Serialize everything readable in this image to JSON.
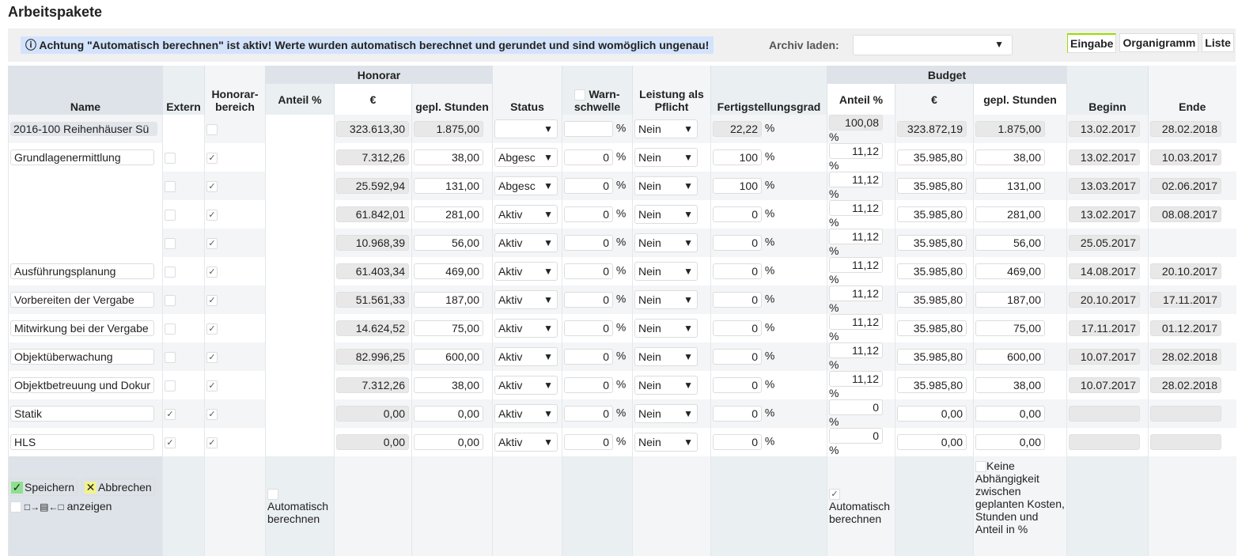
{
  "title": "Arbeitspakete",
  "alert": "ⓘ  Achtung \"Automatisch berechnen\" ist aktiv! Werte wurden automatisch berechnet und gerundet und sind womöglich ungenau!",
  "archive_label": "Archiv laden:",
  "archive_value": "",
  "tabs": [
    "Eingabe",
    "Organigramm",
    "Liste"
  ],
  "headers": {
    "name": "Name",
    "extern": "Extern",
    "honorarbereich": "Honorar-bereich",
    "honorar": "Honorar",
    "anteil": "Anteil %",
    "eur": "€",
    "stunden": "gepl. Stunden",
    "status": "Status",
    "warn": "Warn-schwelle",
    "leistung": "Leistung als Pflicht",
    "fertig": "Fertigstellungsgrad",
    "budget": "Budget",
    "b_anteil": "Anteil %",
    "b_eur": "€",
    "b_stunden": "gepl. Stunden",
    "beginn": "Beginn",
    "ende": "Ende"
  },
  "rows": [
    {
      "name": "2016-100 Reihenhäuser Sü",
      "summary": true,
      "extern": null,
      "honorar": false,
      "h_eur": "323.613,30",
      "h_std": "1.875,00",
      "status": "",
      "warn": "",
      "leistung": "Nein",
      "fertig": "22,22",
      "anteil": "100,08",
      "b_eur": "323.872,19",
      "b_std": "1.875,00",
      "beginn": "13.02.2017",
      "ende": "28.02.2018"
    },
    {
      "name": "Grundlagenermittlung",
      "extern": false,
      "honorar": true,
      "h_eur": "7.312,26",
      "h_std": "38,00",
      "status": "Abgesc",
      "warn": "0",
      "leistung": "Nein",
      "fertig": "100",
      "anteil": "11,12",
      "b_eur": "35.985,80",
      "b_std": "38,00",
      "beginn": "13.02.2017",
      "ende": "10.03.2017"
    },
    {
      "name": null,
      "extern": false,
      "honorar": true,
      "h_eur": "25.592,94",
      "h_std": "131,00",
      "status": "Abgesc",
      "warn": "0",
      "leistung": "Nein",
      "fertig": "100",
      "anteil": "11,12",
      "b_eur": "35.985,80",
      "b_std": "131,00",
      "beginn": "13.03.2017",
      "ende": "02.06.2017"
    },
    {
      "name": null,
      "extern": false,
      "honorar": true,
      "h_eur": "61.842,01",
      "h_std": "281,00",
      "status": "Aktiv",
      "warn": "0",
      "leistung": "Nein",
      "fertig": "0",
      "anteil": "11,12",
      "b_eur": "35.985,80",
      "b_std": "281,00",
      "beginn": "13.02.2017",
      "ende": "08.08.2017"
    },
    {
      "name": null,
      "extern": false,
      "honorar": true,
      "h_eur": "10.968,39",
      "h_std": "56,00",
      "status": "Aktiv",
      "warn": "0",
      "leistung": "Nein",
      "fertig": "0",
      "anteil": "11,12",
      "b_eur": "35.985,80",
      "b_std": "56,00",
      "beginn": "25.05.2017",
      "ende": null
    },
    {
      "name": "Ausführungsplanung",
      "extern": false,
      "honorar": true,
      "h_eur": "61.403,34",
      "h_std": "469,00",
      "status": "Aktiv",
      "warn": "0",
      "leistung": "Nein",
      "fertig": "0",
      "anteil": "11,12",
      "b_eur": "35.985,80",
      "b_std": "469,00",
      "beginn": "14.08.2017",
      "ende": "20.10.2017"
    },
    {
      "name": "Vorbereiten der Vergabe",
      "extern": false,
      "honorar": true,
      "h_eur": "51.561,33",
      "h_std": "187,00",
      "status": "Aktiv",
      "warn": "0",
      "leistung": "Nein",
      "fertig": "0",
      "anteil": "11,12",
      "b_eur": "35.985,80",
      "b_std": "187,00",
      "beginn": "20.10.2017",
      "ende": "17.11.2017"
    },
    {
      "name": "Mitwirkung bei der Vergabe",
      "extern": false,
      "honorar": true,
      "h_eur": "14.624,52",
      "h_std": "75,00",
      "status": "Aktiv",
      "warn": "0",
      "leistung": "Nein",
      "fertig": "0",
      "anteil": "11,12",
      "b_eur": "35.985,80",
      "b_std": "75,00",
      "beginn": "17.11.2017",
      "ende": "01.12.2017"
    },
    {
      "name": "Objektüberwachung",
      "extern": false,
      "honorar": true,
      "h_eur": "82.996,25",
      "h_std": "600,00",
      "status": "Aktiv",
      "warn": "0",
      "leistung": "Nein",
      "fertig": "0",
      "anteil": "11,12",
      "b_eur": "35.985,80",
      "b_std": "600,00",
      "beginn": "10.07.2017",
      "ende": "28.02.2018"
    },
    {
      "name": "Objektbetreuung und Dokur",
      "extern": false,
      "honorar": true,
      "h_eur": "7.312,26",
      "h_std": "38,00",
      "status": "Aktiv",
      "warn": "0",
      "leistung": "Nein",
      "fertig": "0",
      "anteil": "11,12",
      "b_eur": "35.985,80",
      "b_std": "38,00",
      "beginn": "10.07.2017",
      "ende": "28.02.2018"
    },
    {
      "name": "Statik",
      "extern": true,
      "honorar": true,
      "h_eur": "0,00",
      "h_std": "0,00",
      "status": "Aktiv",
      "warn": "0",
      "leistung": "Nein",
      "fertig": "0",
      "anteil": "0",
      "b_eur": "0,00",
      "b_std": "0,00",
      "beginn": "",
      "ende": ""
    },
    {
      "name": "HLS",
      "extern": true,
      "honorar": true,
      "h_eur": "0,00",
      "h_std": "0,00",
      "status": "Aktiv",
      "warn": "0",
      "leistung": "Nein",
      "fertig": "0",
      "anteil": "0",
      "b_eur": "0,00",
      "b_std": "0,00",
      "beginn": "",
      "ende": ""
    }
  ],
  "percent": "%",
  "footer": {
    "show_label": "anzeigen",
    "show_icon": "□→▤←□",
    "auto_honorar": "Automatisch berechnen",
    "auto_honorar_checked": false,
    "auto_budget": "Automatisch berechnen",
    "auto_budget_checked": true,
    "no_dep": "Keine Abhängigkeit zwischen geplanten Kosten, Stunden und Anteil in %",
    "no_dep_checked": false
  },
  "buttons": {
    "save": "Speichern",
    "cancel": "Abbrechen"
  },
  "colors": {
    "save": "#8ee08e",
    "cancel": "#f3f38a",
    "alert_bg": "#d3e3fb",
    "active_tab": "#99dd00"
  }
}
